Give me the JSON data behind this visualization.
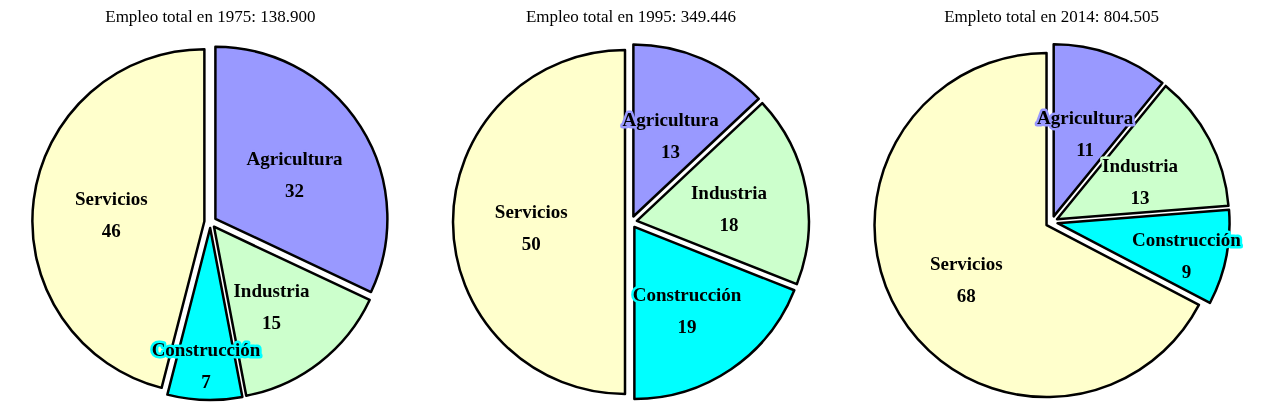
{
  "chart_data": [
    {
      "type": "pie",
      "title": "Empleo total en 1975: 138.900",
      "categories": [
        "Agricultura",
        "Industria",
        "Construcción",
        "Servicios"
      ],
      "values": [
        32,
        15,
        7,
        46
      ],
      "colors": [
        "#9999ff",
        "#ccffcc",
        "#00ffff",
        "#ffffcc"
      ],
      "data_labels": true
    },
    {
      "type": "pie",
      "title": "Empleo total en 1995: 349.446",
      "categories": [
        "Agricultura",
        "Industria",
        "Construcción",
        "Servicios"
      ],
      "values": [
        13,
        18,
        19,
        50
      ],
      "colors": [
        "#9999ff",
        "#ccffcc",
        "#00ffff",
        "#ffffcc"
      ],
      "data_labels": true
    },
    {
      "type": "pie",
      "title": "Empleto total en 2014: 804.505",
      "categories": [
        "Agricultura",
        "Industria",
        "Construcción",
        "Servicios"
      ],
      "values": [
        11,
        13,
        9,
        68
      ],
      "colors": [
        "#9999ff",
        "#ccffcc",
        "#00ffff",
        "#ffffcc"
      ],
      "data_labels": true
    }
  ]
}
